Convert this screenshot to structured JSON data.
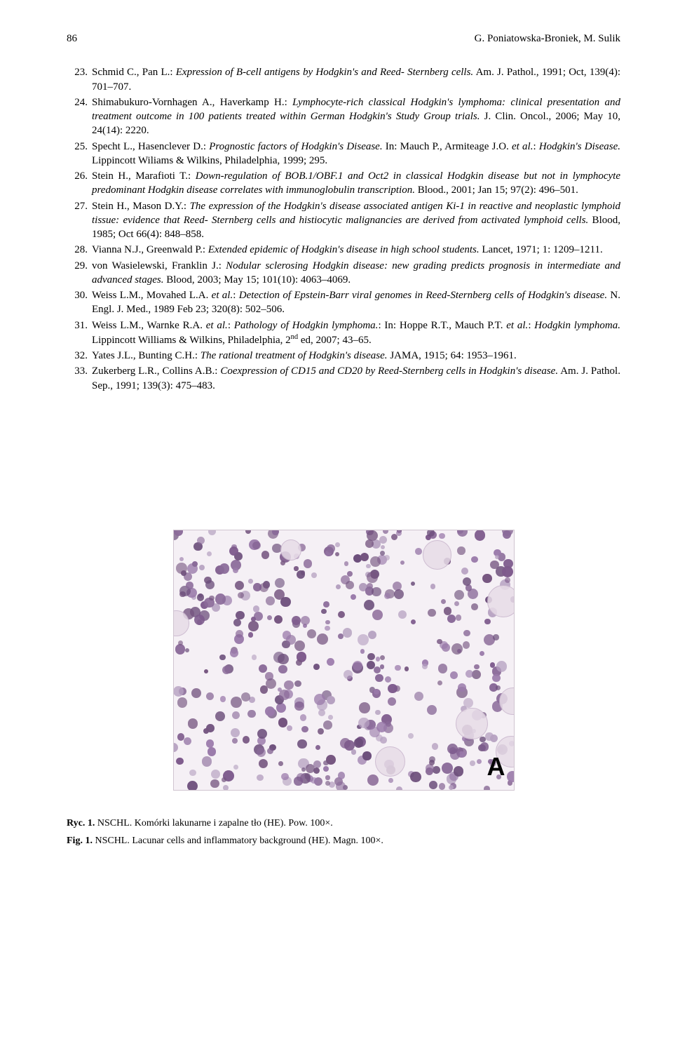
{
  "header": {
    "page_number": "86",
    "authors": "G. Poniatowska-Broniek, M. Sulik"
  },
  "references": [
    {
      "num": "23.",
      "html": "Schmid C., Pan L.: <span class='italic'>Expression of B-cell antigens by Hodgkin's and Reed- Sternberg cells.</span> Am. J. Pathol., 1991; Oct, 139(4): 701–707."
    },
    {
      "num": "24.",
      "html": "Shimabukuro-Vornhagen A., Haverkamp H.: <span class='italic'>Lymphocyte-rich classical Hodgkin's lymphoma: clinical presentation and treatment outcome in 100 patients treated within German Hodgkin's Study Group trials.</span> J. Clin. Oncol., 2006; May 10, 24(14): 2220."
    },
    {
      "num": "25.",
      "html": "Specht L., Hasenclever D.: <span class='italic'>Prognostic factors of Hodgkin's Disease.</span> In: Mauch P., Armiteage J.O. <span class='italic'>et al.</span>: <span class='italic'>Hodgkin's Disease.</span> Lippincott Wiliams & Wilkins, Philadelphia, 1999; 295."
    },
    {
      "num": "26.",
      "html": "Stein H., Marafioti T.: <span class='italic'>Down-regulation of BOB.1/OBF.1 and Oct2 in classical Hodgkin disease but not in lymphocyte predominant Hodgkin disease correlates with immunoglobulin transcription.</span> Blood., 2001; Jan 15; 97(2): 496–501."
    },
    {
      "num": "27.",
      "html": "Stein H., Mason D.Y.: <span class='italic'>The expression of the Hodgkin's disease associated antigen Ki-1 in reactive and neoplastic lymphoid tissue: evidence that Reed- Sternberg cells and histiocytic malignancies are derived from activated lymphoid cells.</span> Blood, 1985; Oct 66(4): 848–858."
    },
    {
      "num": "28.",
      "html": "Vianna N.J., Greenwald P.: <span class='italic'>Extended epidemic of Hodgkin's disease in high school students.</span> Lancet, 1971; 1: 1209–1211."
    },
    {
      "num": "29.",
      "html": "von Wasielewski, Franklin J.: <span class='italic'>Nodular sclerosing Hodgkin disease: new grading predicts prognosis in intermediate and advanced stages.</span> Blood, 2003; May 15; 101(10): 4063–4069."
    },
    {
      "num": "30.",
      "html": "Weiss L.M., Movahed L.A. <span class='italic'>et al.</span>: <span class='italic'>Detection of Epstein-Barr viral genomes in Reed-Sternberg cells of Hodgkin's disease.</span> N. Engl. J. Med., 1989 Feb 23; 320(8): 502–506."
    },
    {
      "num": "31.",
      "html": "Weiss L.M., Warnke R.A. <span class='italic'>et al.</span>: <span class='italic'>Pathology of Hodgkin lymphoma.</span>: In: Hoppe R.T., Mauch P.T. <span class='italic'>et al.</span>: <span class='italic'>Hodgkin lymphoma.</span> Lippincott Williams & Wilkins, Philadelphia, 2<sup>nd</sup> ed, 2007; 43–65."
    },
    {
      "num": "32.",
      "html": "Yates J.L., Bunting C.H.: <span class='italic'>The rational treatment of Hodgkin's disease.</span> JAMA, 1915; 64: 1953–1961."
    },
    {
      "num": "33.",
      "html": "Zukerberg L.R., Collins A.B.: <span class='italic'>Coexpression of CD15 and CD20 by Reed-Sternberg cells in Hodgkin's disease.</span> Am. J. Pathol. Sep., 1991; 139(3): 475–483."
    }
  ],
  "figure": {
    "letter": "A",
    "background": "#f5f0f5",
    "cell_colors": [
      "#7d5a8c",
      "#9a7aaa",
      "#6b4d7a",
      "#8a6a99",
      "#b5a0c0",
      "#755580"
    ],
    "cell_count": 420,
    "cell_size_min": 6,
    "cell_size_max": 16
  },
  "captions": {
    "ryc_label": "Ryc. 1.",
    "ryc_text": " NSCHL. Komórki lakunarne i zapalne tło (HE). Pow. 100×.",
    "fig_label": "Fig. 1.",
    "fig_text": " NSCHL. Lacunar cells and inflammatory background (HE). Magn. 100×."
  }
}
